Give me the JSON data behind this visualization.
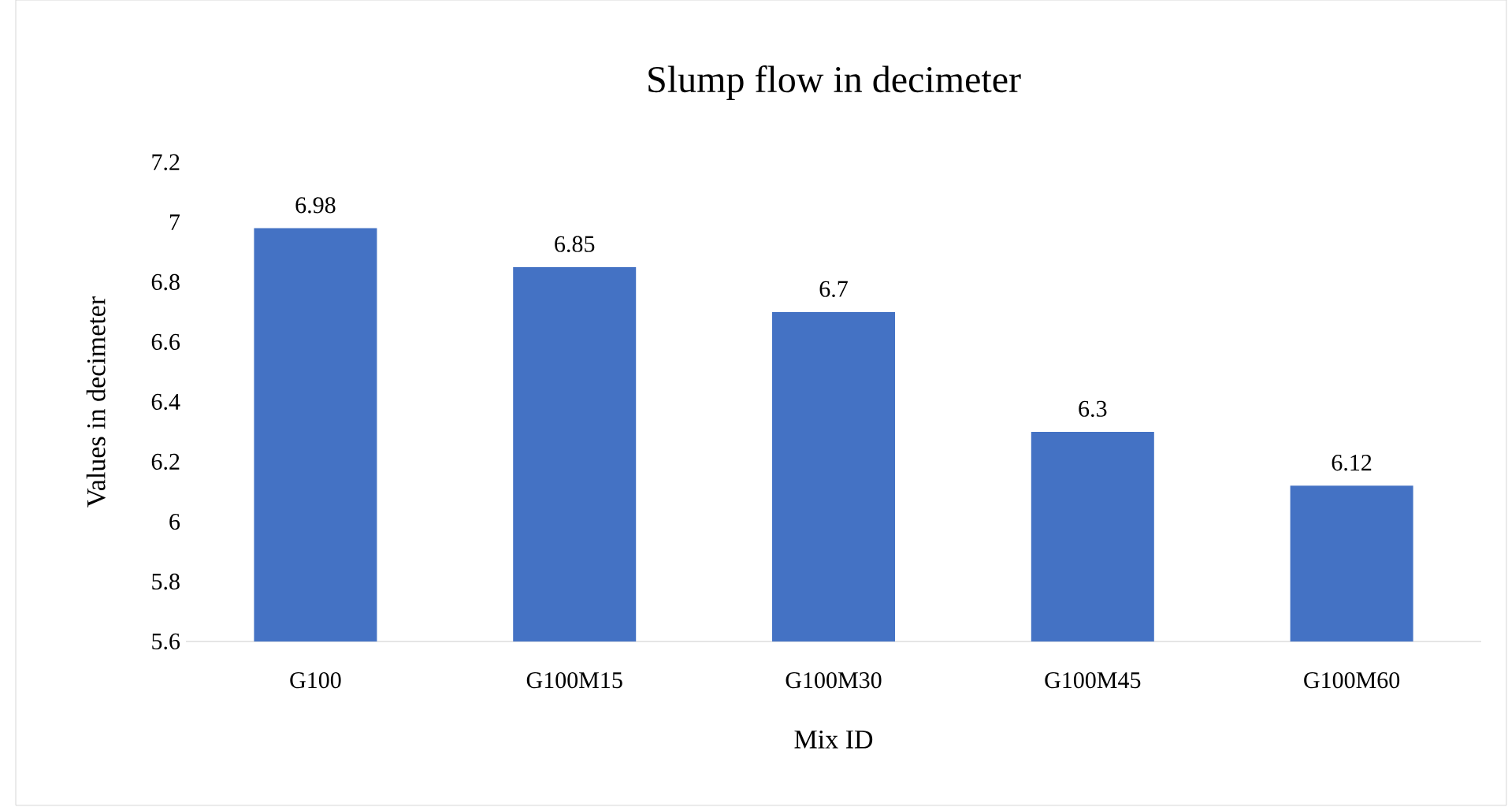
{
  "chart_data": {
    "type": "bar",
    "title": "Slump flow in decimeter",
    "xlabel": "Mix ID",
    "ylabel": "Values in decimeter",
    "categories": [
      "G100",
      "G100M15",
      "G100M30",
      "G100M45",
      "G100M60"
    ],
    "values": [
      6.98,
      6.85,
      6.7,
      6.3,
      6.12
    ],
    "value_labels": [
      "6.98",
      "6.85",
      "6.7",
      "6.3",
      "6.12"
    ],
    "color": "#4472c4",
    "ylim": [
      5.6,
      7.2
    ],
    "yticks": [
      5.6,
      5.8,
      6,
      6.2,
      6.4,
      6.6,
      6.8,
      7,
      7.2
    ],
    "grid": false
  }
}
